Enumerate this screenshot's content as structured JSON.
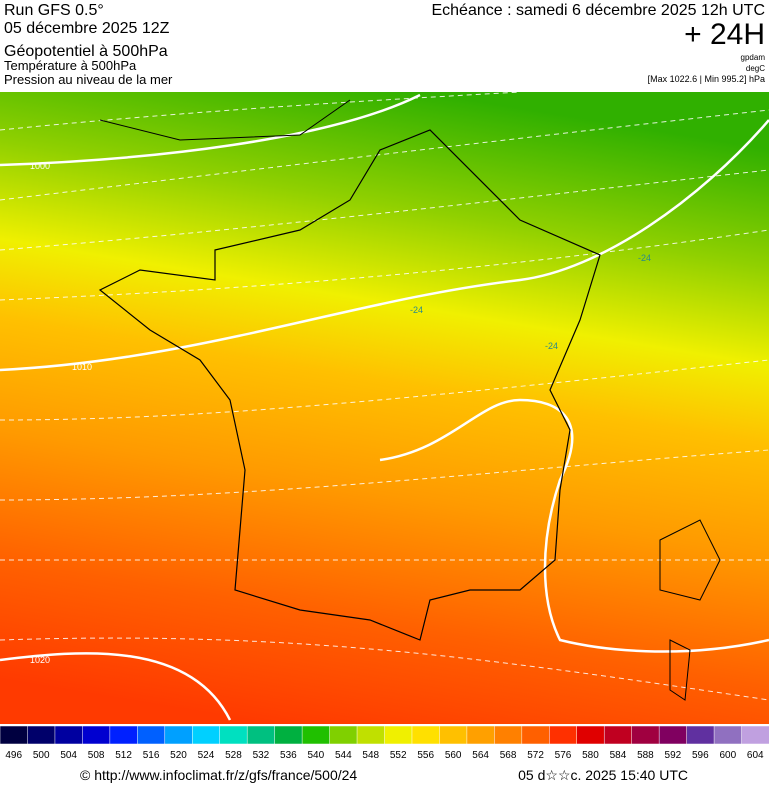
{
  "header": {
    "run": "Run GFS 0.5°",
    "date": "05 décembre 2025 12Z",
    "title": "Géopotentiel à 500hPa",
    "subtitle_1": "Température à 500hPa",
    "subtitle_2": "Pression au niveau de la mer",
    "echeance": "Echéance : samedi 6 décembre 2025 12h UTC",
    "lead": "+ 24H",
    "unit_1": "gpdam",
    "unit_2": "degC",
    "range": "[Max 1022.6 | Min 995.2] hPa"
  },
  "map": {
    "isobar_labels": [
      "1000",
      "1010",
      "1020"
    ],
    "isotherm_labels": [
      "-24",
      "-24",
      "-24"
    ]
  },
  "scale": {
    "labels": [
      496,
      500,
      504,
      508,
      512,
      516,
      520,
      524,
      528,
      532,
      536,
      540,
      544,
      548,
      552,
      556,
      560,
      564,
      568,
      572,
      576,
      580,
      584,
      588,
      592,
      596,
      600,
      604
    ],
    "colors": [
      "#000040",
      "#00006a",
      "#0000a0",
      "#0000d0",
      "#0020ff",
      "#0060ff",
      "#00a0ff",
      "#00d0ff",
      "#00e0c0",
      "#00c080",
      "#00b040",
      "#20c000",
      "#80d000",
      "#c0e000",
      "#f0f000",
      "#ffe000",
      "#ffc000",
      "#ffa000",
      "#ff8000",
      "#ff6000",
      "#ff3000",
      "#e00000",
      "#c00020",
      "#a00040",
      "#800060",
      "#6030a0",
      "#9070c0",
      "#c0a0e0"
    ]
  },
  "footer": {
    "url": "© http://www.infoclimat.fr/z/gfs/france/500/24",
    "stamp": "05 d☆☆c. 2025 15:40 UTC"
  }
}
